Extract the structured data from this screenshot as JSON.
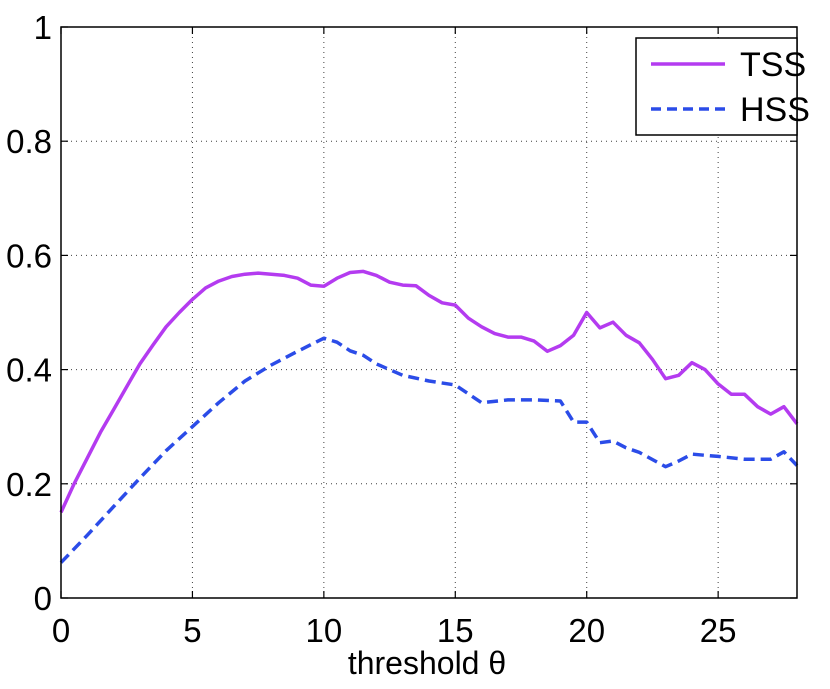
{
  "chart_data": {
    "type": "line",
    "title": "",
    "xlabel": "threshold θ",
    "ylabel": "",
    "xlim": [
      0,
      28
    ],
    "ylim": [
      0,
      1
    ],
    "xticks": [
      0,
      5,
      10,
      15,
      20,
      25
    ],
    "yticks": [
      0,
      0.2,
      0.4,
      0.6,
      0.8,
      1
    ],
    "xtick_labels": [
      "0",
      "5",
      "10",
      "15",
      "20",
      "25"
    ],
    "ytick_labels": [
      "0",
      "0.2",
      "0.4",
      "0.6",
      "0.8",
      "1"
    ],
    "grid": true,
    "legend_position": "top-right",
    "series": [
      {
        "name": "TSS",
        "color": "#b43bf0",
        "style": "solid",
        "x": [
          0,
          0.5,
          1,
          1.5,
          2,
          2.5,
          3,
          3.5,
          4,
          4.5,
          5,
          5.5,
          6,
          6.5,
          7,
          7.5,
          8,
          8.5,
          9,
          9.5,
          10,
          10.5,
          11,
          11.5,
          12,
          12.5,
          13,
          13.5,
          14,
          14.5,
          15,
          15.5,
          16,
          16.5,
          17,
          17.5,
          18,
          18.5,
          19,
          19.5,
          20,
          20.5,
          21,
          21.5,
          22,
          22.5,
          23,
          23.5,
          24,
          24.5,
          25,
          25.5,
          26,
          26.5,
          27,
          27.5,
          28
        ],
        "values": [
          0.15,
          0.2,
          0.245,
          0.29,
          0.33,
          0.37,
          0.41,
          0.443,
          0.475,
          0.5,
          0.523,
          0.543,
          0.555,
          0.563,
          0.567,
          0.569,
          0.567,
          0.565,
          0.56,
          0.548,
          0.546,
          0.56,
          0.57,
          0.572,
          0.565,
          0.553,
          0.548,
          0.547,
          0.53,
          0.517,
          0.513,
          0.49,
          0.475,
          0.463,
          0.457,
          0.457,
          0.45,
          0.432,
          0.442,
          0.46,
          0.5,
          0.473,
          0.483,
          0.46,
          0.447,
          0.418,
          0.384,
          0.39,
          0.412,
          0.4,
          0.375,
          0.357,
          0.357,
          0.335,
          0.322,
          0.335,
          0.305
        ]
      },
      {
        "name": "HSS",
        "color": "#2b4ce8",
        "style": "dashed",
        "x": [
          0,
          1,
          2,
          3,
          4,
          5,
          6,
          7,
          8,
          9,
          10,
          10.5,
          11,
          11.5,
          12,
          13,
          14,
          15,
          16,
          17,
          18,
          19,
          19.5,
          20,
          20.5,
          21,
          21.5,
          22,
          23,
          23.5,
          24,
          24.5,
          25,
          26,
          27,
          27.5,
          28
        ],
        "values": [
          0.062,
          0.11,
          0.16,
          0.21,
          0.258,
          0.3,
          0.342,
          0.38,
          0.408,
          0.432,
          0.455,
          0.448,
          0.433,
          0.425,
          0.41,
          0.39,
          0.38,
          0.373,
          0.342,
          0.347,
          0.347,
          0.345,
          0.308,
          0.308,
          0.272,
          0.275,
          0.263,
          0.255,
          0.23,
          0.24,
          0.252,
          0.25,
          0.248,
          0.243,
          0.243,
          0.256,
          0.232
        ]
      }
    ]
  }
}
